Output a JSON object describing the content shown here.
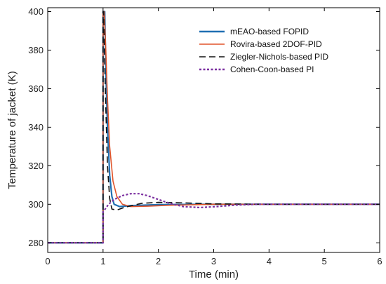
{
  "chart_data": {
    "type": "line",
    "title": "",
    "xlabel": "Time (min)",
    "ylabel": "Temperature of jacket (K)",
    "xlim": [
      0,
      6
    ],
    "ylim": [
      275,
      402
    ],
    "xticks": [
      0,
      1,
      2,
      3,
      4,
      5,
      6
    ],
    "yticks": [
      280,
      300,
      320,
      340,
      360,
      380,
      400
    ],
    "grid": false,
    "legend_position": "top-right",
    "series": [
      {
        "name": "mEAO-based FOPID",
        "color": "#1f6fb2",
        "dash": "solid",
        "points": [
          [
            0,
            280
          ],
          [
            1,
            280
          ],
          [
            1,
            400
          ],
          [
            1.03,
            400
          ],
          [
            1.05,
            370
          ],
          [
            1.08,
            340
          ],
          [
            1.12,
            315
          ],
          [
            1.16,
            304
          ],
          [
            1.2,
            300
          ],
          [
            1.3,
            298.8
          ],
          [
            1.5,
            299.3
          ],
          [
            2,
            299.8
          ],
          [
            3,
            300
          ],
          [
            6,
            300
          ]
        ]
      },
      {
        "name": "Rovira-based 2DOF-PID",
        "color": "#e0542a",
        "dash": "solid",
        "points": [
          [
            0,
            280
          ],
          [
            1,
            280
          ],
          [
            1,
            400
          ],
          [
            1.02,
            400
          ],
          [
            1.05,
            380
          ],
          [
            1.08,
            355
          ],
          [
            1.12,
            330
          ],
          [
            1.18,
            312
          ],
          [
            1.25,
            304
          ],
          [
            1.35,
            300
          ],
          [
            1.5,
            298.8
          ],
          [
            1.8,
            299
          ],
          [
            2.2,
            299.5
          ],
          [
            3,
            300
          ],
          [
            6,
            300
          ]
        ]
      },
      {
        "name": "Ziegler-Nichols-based PID",
        "color": "#111111",
        "dash": "long",
        "points": [
          [
            0,
            280
          ],
          [
            1,
            280
          ],
          [
            1,
            400
          ],
          [
            1.01,
            400
          ],
          [
            1.04,
            360
          ],
          [
            1.08,
            320
          ],
          [
            1.12,
            303
          ],
          [
            1.16,
            297.5
          ],
          [
            1.25,
            297
          ],
          [
            1.4,
            298.5
          ],
          [
            1.7,
            300.5
          ],
          [
            2,
            301
          ],
          [
            2.5,
            300.7
          ],
          [
            3,
            300.2
          ],
          [
            4,
            300
          ],
          [
            6,
            300
          ]
        ]
      },
      {
        "name": "Cohen-Coon-based PI",
        "color": "#7b2fa0",
        "dash": "dot",
        "points": [
          [
            0,
            280
          ],
          [
            1,
            280
          ],
          [
            1,
            296
          ],
          [
            1.1,
            300
          ],
          [
            1.2,
            302.5
          ],
          [
            1.35,
            304.5
          ],
          [
            1.5,
            305.5
          ],
          [
            1.65,
            305.5
          ],
          [
            1.8,
            304.5
          ],
          [
            2.0,
            302.5
          ],
          [
            2.2,
            300.5
          ],
          [
            2.45,
            298.8
          ],
          [
            2.75,
            298.3
          ],
          [
            3.05,
            298.8
          ],
          [
            3.4,
            299.6
          ],
          [
            3.8,
            300
          ],
          [
            6,
            300
          ]
        ]
      }
    ]
  }
}
